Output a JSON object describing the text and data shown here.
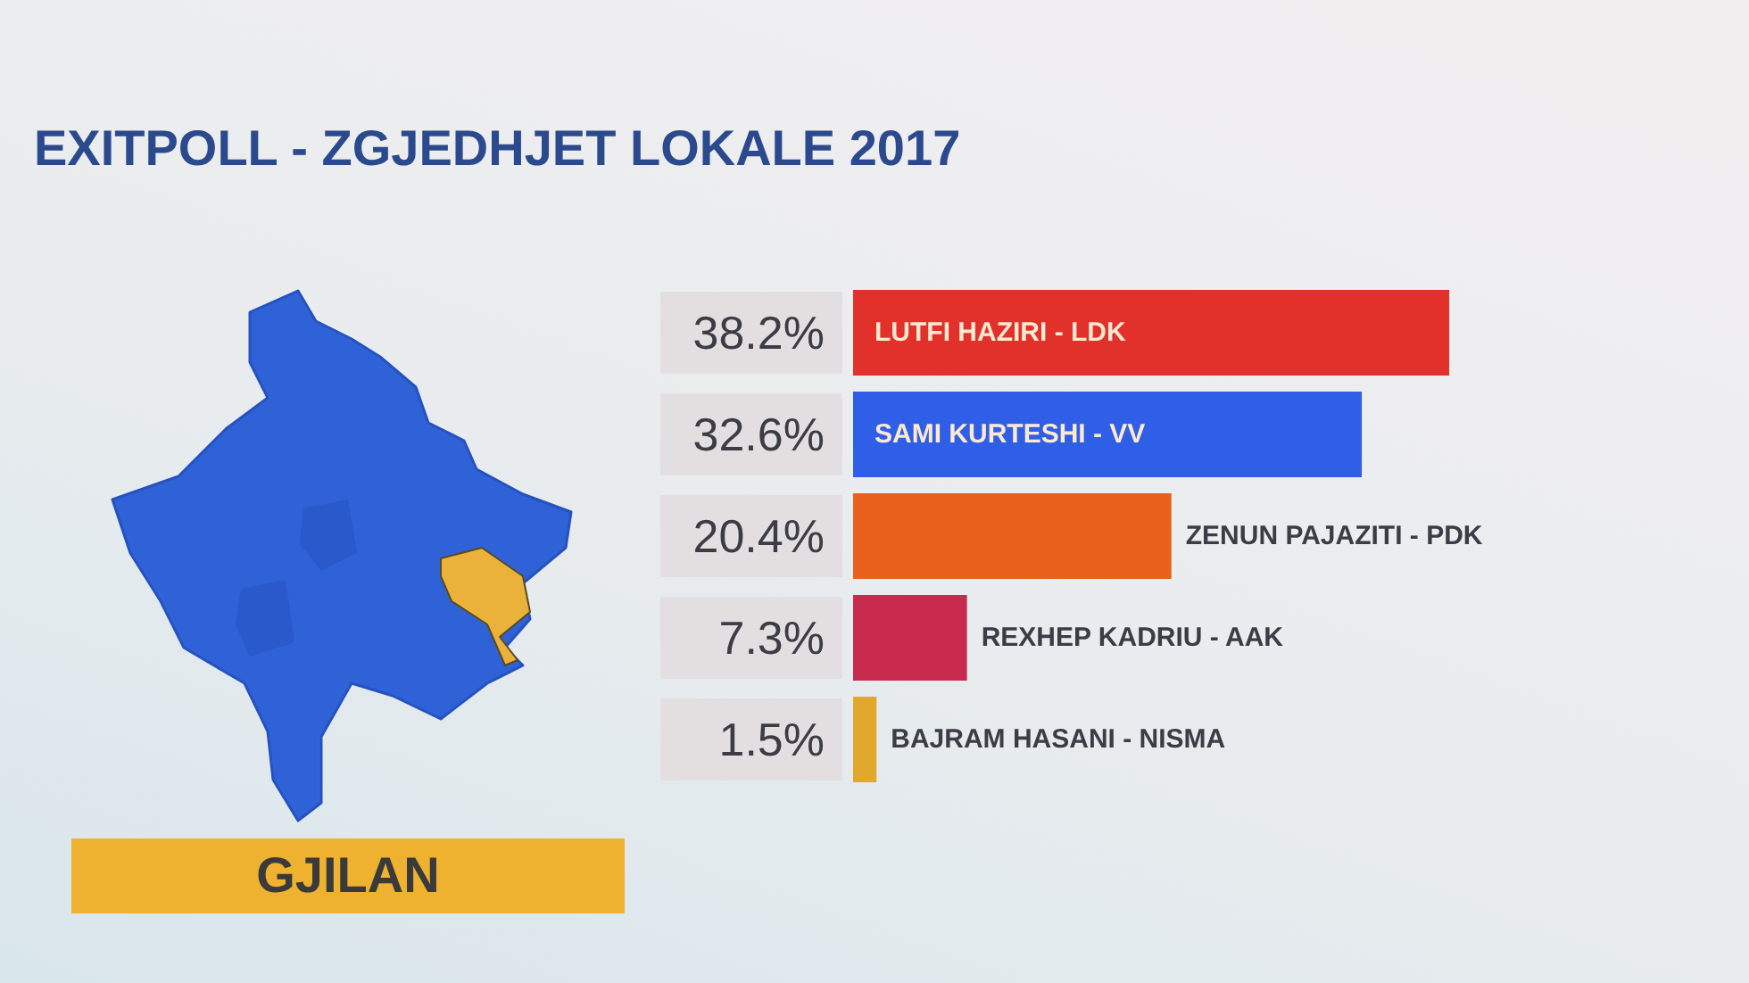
{
  "chart_data": {
    "type": "bar",
    "orientation": "horizontal",
    "title": "EXITPOLL - ZGJEDHJET LOKALE 2017",
    "categories": [
      "LUTFI HAZIRI - LDK",
      "SAMI KURTESHI - VV",
      "ZENUN PAJAZITI - PDK",
      "REXHEP KADRIU - AAK",
      "BAJRAM HASANI - NISMA"
    ],
    "values": [
      38.2,
      32.6,
      20.4,
      7.3,
      1.5
    ],
    "value_labels": [
      "38.2%",
      "32.6%",
      "20.4%",
      "7.3%",
      "1.5%"
    ],
    "colors": [
      "#e2302a",
      "#2f5fe6",
      "#e8621e",
      "#c82a4e",
      "#e0a82c"
    ],
    "annotations": [
      "GJILAN"
    ],
    "tick_labels": "y"
  }
}
